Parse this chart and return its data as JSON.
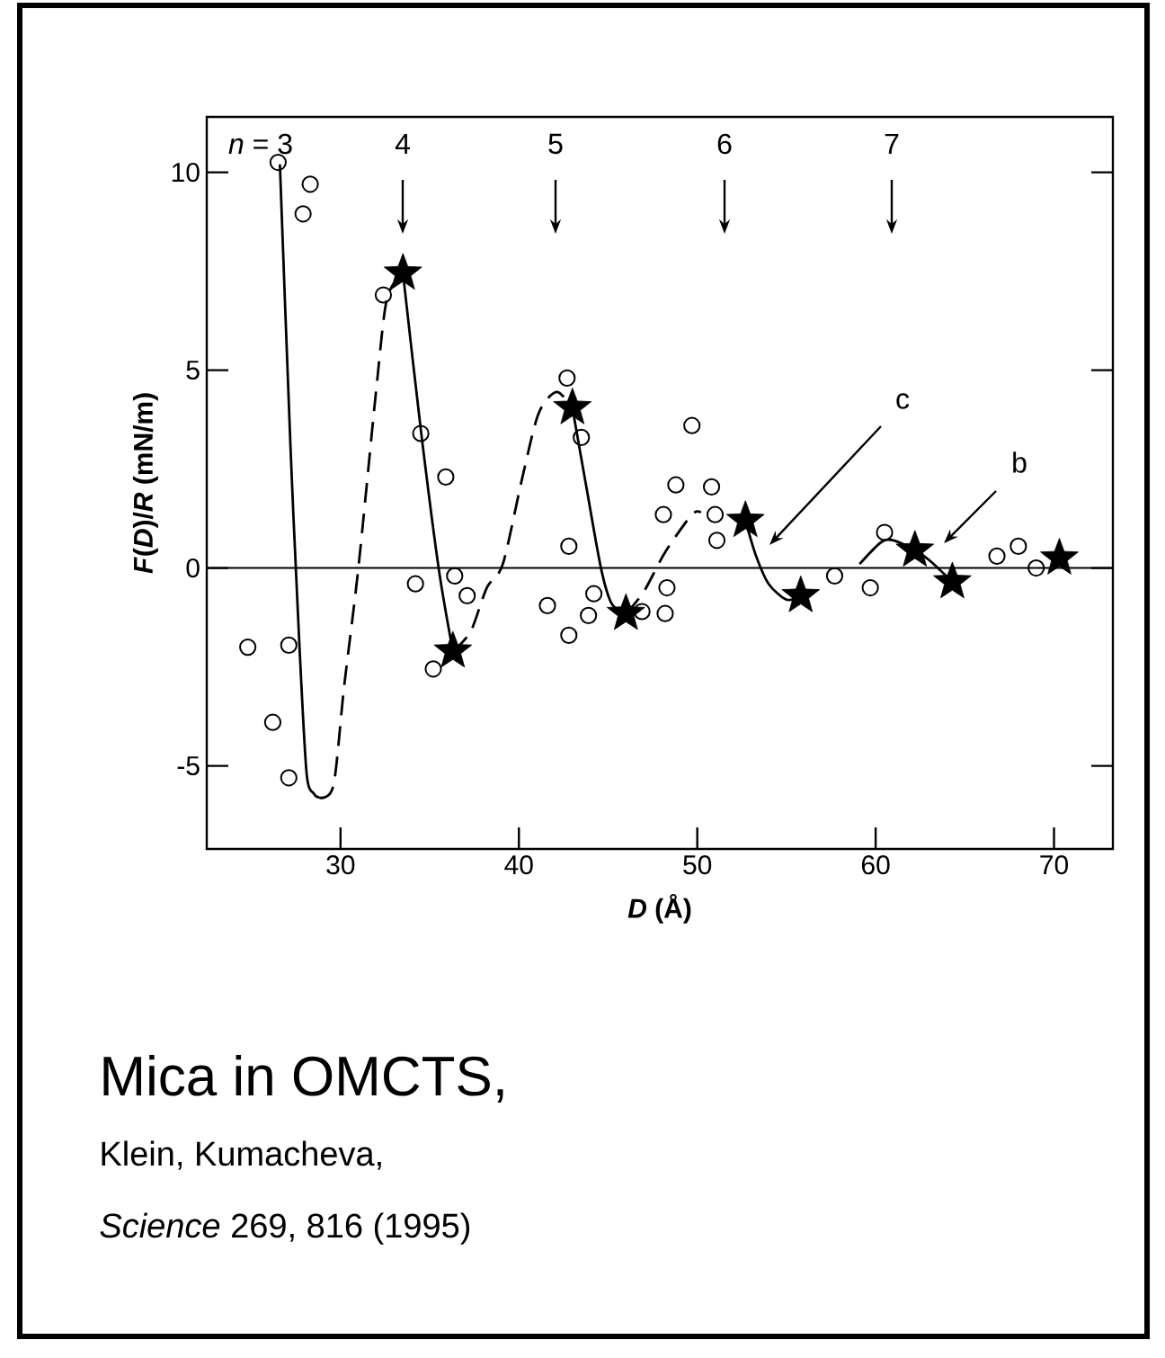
{
  "chart_data": {
    "type": "scatter",
    "xlabel": "*D* (Å)",
    "ylabel": "*F*(*D*)/*R* (mN/m)",
    "xlim": [
      22.5,
      73.3
    ],
    "ylim": [
      -7.1,
      11.4
    ],
    "xticks": [
      30,
      40,
      50,
      60,
      70
    ],
    "yticks": [
      -5,
      0,
      5,
      10
    ],
    "ref_lines": [
      {
        "axis": "y",
        "value": 0
      }
    ],
    "series": [
      {
        "type": "line",
        "line_style": "solid",
        "color": "#000000",
        "x": [
          26.6,
          27.2,
          27.7,
          28.1,
          28.5,
          28.8
        ],
        "values": [
          10.2,
          3,
          -2,
          -5.2,
          -5.7,
          -5.8
        ]
      },
      {
        "type": "line",
        "line_style": "dashed",
        "color": "#000000",
        "x": [
          28.8,
          29.6,
          30.2,
          31.0,
          32.0,
          32.6,
          33.5
        ],
        "values": [
          -5.8,
          -5.5,
          -3,
          0,
          4.5,
          6.8,
          7.45
        ]
      },
      {
        "type": "line",
        "line_style": "solid",
        "color": "#000000",
        "x": [
          33.5,
          34.5,
          35.5,
          36.3
        ],
        "values": [
          7.45,
          3.5,
          0,
          -2.1
        ]
      },
      {
        "type": "line",
        "line_style": "dashed",
        "color": "#000000",
        "x": [
          36.3,
          37.3,
          38.2,
          39.1,
          40.2,
          41.1,
          42.1,
          43.0
        ],
        "values": [
          -2.1,
          -1.6,
          -0.5,
          0.1,
          2.3,
          3.9,
          4.45,
          4.05
        ]
      },
      {
        "type": "line",
        "line_style": "solid",
        "color": "#000000",
        "x": [
          43.0,
          43.8,
          44.6,
          45.2,
          46.0
        ],
        "values": [
          4.05,
          2,
          0,
          -0.9,
          -1.15
        ]
      },
      {
        "type": "line",
        "line_style": "dashed",
        "color": "#000000",
        "x": [
          46.0,
          47.0,
          48.2,
          49.7,
          50.2
        ],
        "values": [
          -1.15,
          -0.6,
          0.4,
          1.35,
          1.4
        ]
      },
      {
        "type": "line",
        "line_style": "solid",
        "color": "#000000",
        "x": [
          52.7,
          53.3,
          54.0,
          55.0,
          55.8
        ],
        "values": [
          1.2,
          0.3,
          -0.4,
          -0.8,
          -0.7
        ]
      },
      {
        "type": "line",
        "line_style": "solid",
        "color": "#000000",
        "x": [
          59.1,
          60.3,
          61.0,
          62.2,
          63.0,
          64.3
        ],
        "values": [
          0.1,
          0.65,
          0.7,
          0.45,
          0.2,
          -0.35
        ]
      },
      {
        "type": "scatter",
        "marker": "circle",
        "color": "#000000",
        "x": [
          26.5,
          28.3,
          27.9,
          32.4,
          34.5,
          35.9,
          34.2,
          36.4,
          37.1,
          35.2,
          24.8,
          27.1,
          26.2,
          27.1,
          42.7,
          43.5,
          42.8,
          41.6,
          42.8,
          43.9,
          44.2,
          46.9,
          48.2,
          48.3,
          48.1,
          48.8,
          49.7,
          50.8,
          51.0,
          51.1,
          57.7,
          59.7,
          60.5,
          66.8,
          68.0,
          69.0
        ],
        "values": [
          10.25,
          9.7,
          8.95,
          6.9,
          3.4,
          2.3,
          -0.4,
          -0.2,
          -0.7,
          -2.55,
          -2.0,
          -1.95,
          -3.9,
          -5.3,
          4.8,
          3.3,
          0.55,
          -0.95,
          -1.7,
          -1.2,
          -0.65,
          -1.1,
          -1.15,
          -0.5,
          1.35,
          2.1,
          3.6,
          2.05,
          1.35,
          0.7,
          -0.2,
          -0.5,
          0.9,
          0.3,
          0.55,
          0.0
        ]
      },
      {
        "type": "scatter",
        "marker": "star",
        "color": "#000000",
        "x": [
          33.5,
          36.3,
          43.0,
          46.0,
          52.7,
          55.8,
          62.2,
          64.3,
          70.3
        ],
        "values": [
          7.45,
          -2.1,
          4.05,
          -1.15,
          1.2,
          -0.7,
          0.45,
          -0.35,
          0.25
        ]
      }
    ],
    "annotations": [
      "*n* = 3",
      "4",
      "5",
      "6",
      "7",
      "c",
      "b",
      "Mica in OMCTS,",
      "Klein, Kumacheva,",
      "*Science* 269, 816 (1995)"
    ]
  }
}
